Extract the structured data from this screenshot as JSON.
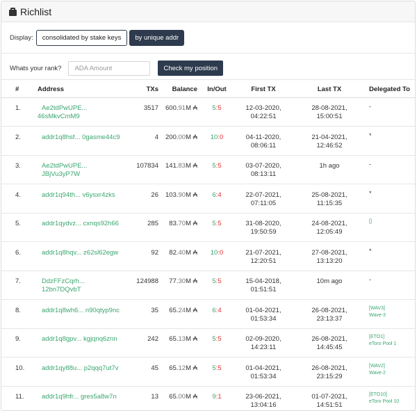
{
  "header": {
    "title": "Richlist",
    "icon": "wallet-icon"
  },
  "display": {
    "label": "Display:",
    "option_consolidated": "consolidated by stake keys",
    "option_unique": "by unique addr"
  },
  "rank": {
    "label": "Whats your rank?",
    "placeholder": "ADA Amount",
    "button": "Check my position"
  },
  "columns": {
    "num": "#",
    "address": "Address",
    "txs": "TXs",
    "balance": "Balance",
    "inout": "In/Out",
    "first_tx": "First TX",
    "last_tx": "Last TX",
    "delegated": "Delegated To"
  },
  "rows": [
    {
      "num": "1.",
      "addr1": "Ae2tdPwUPE...",
      "addr2": "46sMkvCmM9",
      "txs": "3517",
      "bal_main": "600.",
      "bal_dim": "91",
      "bal_unit": "M",
      "bal_sym": "₳",
      "in": "5",
      "out": "5",
      "first_date": "12-03-2020,",
      "first_time": "04:22:51",
      "last_date": "28-08-2021,",
      "last_time": "15:00:51",
      "del_tag": "",
      "del_name": "-"
    },
    {
      "num": "2.",
      "addr1": "addr1q8hsf... 0gasme44c9",
      "addr2": "",
      "txs": "4",
      "bal_main": "200.",
      "bal_dim": "00",
      "bal_unit": "M",
      "bal_sym": "₳",
      "in": "10",
      "out": "0",
      "first_date": "04-11-2020,",
      "first_time": "08:06:11",
      "last_date": "21-04-2021,",
      "last_time": "12:46:52",
      "del_tag": "",
      "del_name": "*"
    },
    {
      "num": "3.",
      "addr1": "Ae2tdPwUPE... JBjVu3yP7W",
      "addr2": "",
      "txs": "107834",
      "bal_main": "141.",
      "bal_dim": "83",
      "bal_unit": "M",
      "bal_sym": "₳",
      "in": "5",
      "out": "5",
      "first_date": "03-07-2020,",
      "first_time": "08:13:11",
      "last_date": "1h ago",
      "last_time": "",
      "del_tag": "",
      "del_name": "-"
    },
    {
      "num": "4.",
      "addr1": "addr1q94th... v6ysxr4zks",
      "addr2": "",
      "txs": "26",
      "bal_main": "103.",
      "bal_dim": "90",
      "bal_unit": "M",
      "bal_sym": "₳",
      "in": "6",
      "out": "4",
      "first_date": "22-07-2021,",
      "first_time": "07:11:05",
      "last_date": "25-08-2021,",
      "last_time": "11:15:35",
      "del_tag": "",
      "del_name": "*"
    },
    {
      "num": "5.",
      "addr1": "addr1qydvz... cxnqs92h66",
      "addr2": "",
      "txs": "285",
      "bal_main": "83.",
      "bal_dim": "70",
      "bal_unit": "M",
      "bal_sym": "₳",
      "in": "5",
      "out": "5",
      "first_date": "31-08-2020,",
      "first_time": "19:50:59",
      "last_date": "24-08-2021,",
      "last_time": "12:05:49",
      "del_tag": "[]",
      "del_name": ""
    },
    {
      "num": "6.",
      "addr1": "addr1q8hqv... z62sl62egw",
      "addr2": "",
      "txs": "92",
      "bal_main": "82.",
      "bal_dim": "40",
      "bal_unit": "M",
      "bal_sym": "₳",
      "in": "10",
      "out": "0",
      "first_date": "21-07-2021,",
      "first_time": "12:20:51",
      "last_date": "27-08-2021,",
      "last_time": "13:13:20",
      "del_tag": "",
      "del_name": "*"
    },
    {
      "num": "7.",
      "addr1": "DdzFFzCqrh... 12bn7DQvbT",
      "addr2": "",
      "txs": "124988",
      "bal_main": "77.",
      "bal_dim": "30",
      "bal_unit": "M",
      "bal_sym": "₳",
      "in": "5",
      "out": "5",
      "first_date": "15-04-2018,",
      "first_time": "01:51:51",
      "last_date": "10m ago",
      "last_time": "",
      "del_tag": "",
      "del_name": "-"
    },
    {
      "num": "8.",
      "addr1": "addr1q8wh6... n90qtyp9nc",
      "addr2": "",
      "txs": "35",
      "bal_main": "65.",
      "bal_dim": "24",
      "bal_unit": "M",
      "bal_sym": "₳",
      "in": "6",
      "out": "4",
      "first_date": "01-04-2021,",
      "first_time": "01:53:34",
      "last_date": "26-08-2021,",
      "last_time": "23:13:37",
      "del_tag": "[WAV3]",
      "del_name": "Wave-3"
    },
    {
      "num": "9.",
      "addr1": "addr1q8gpv... kgjqnq6znn",
      "addr2": "",
      "txs": "242",
      "bal_main": "65.",
      "bal_dim": "13",
      "bal_unit": "M",
      "bal_sym": "₳",
      "in": "5",
      "out": "5",
      "first_date": "02-09-2020,",
      "first_time": "14:23:11",
      "last_date": "26-08-2021,",
      "last_time": "14:45:45",
      "del_tag": "[ETO1]",
      "del_name": "eToro Pool 1"
    },
    {
      "num": "10.",
      "addr1": "addr1qy88u... p2qqq7ut7v",
      "addr2": "",
      "txs": "45",
      "bal_main": "65.",
      "bal_dim": "12",
      "bal_unit": "M",
      "bal_sym": "₳",
      "in": "5",
      "out": "5",
      "first_date": "01-04-2021,",
      "first_time": "01:53:34",
      "last_date": "26-08-2021,",
      "last_time": "23:15:29",
      "del_tag": "[WAV2]",
      "del_name": "Wave-2"
    },
    {
      "num": "11.",
      "addr1": "addr1q9hfr... gres5a8w7n",
      "addr2": "",
      "txs": "13",
      "bal_main": "65.",
      "bal_dim": "00",
      "bal_unit": "M",
      "bal_sym": "₳",
      "in": "9",
      "out": "1",
      "first_date": "23-06-2021,",
      "first_time": "13:04:16",
      "last_date": "01-07-2021,",
      "last_time": "14:51:51",
      "del_tag": "[ETO10]",
      "del_name": "eToro Pool 10"
    }
  ]
}
